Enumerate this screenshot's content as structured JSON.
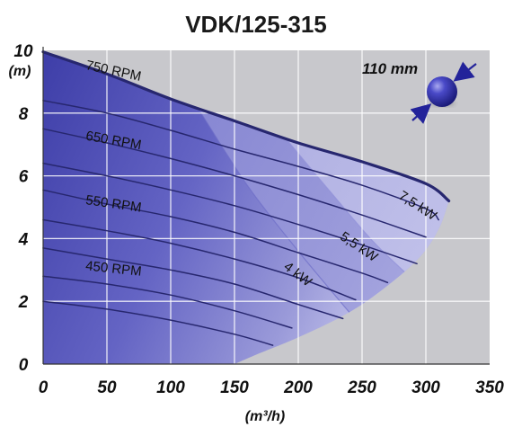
{
  "chart_data": {
    "type": "line",
    "title": "VDK/125-315",
    "xlabel": "(m³/h)",
    "ylabel": "(m)",
    "xlim": [
      0,
      350
    ],
    "ylim": [
      0,
      10
    ],
    "x_ticks": [
      "0",
      "50",
      "100",
      "150",
      "200",
      "250",
      "300",
      "350"
    ],
    "y_ticks": [
      "0",
      "2",
      "4",
      "6",
      "8",
      "10"
    ],
    "grid": true,
    "colors": {
      "region_dark": "#4b4bb0",
      "region_mid": "#7d7dd0",
      "region_light": "#b7b7e8",
      "curve": "#27276f",
      "grid": "#ffffff",
      "ball": "#3232a8",
      "arrow": "#23239a"
    },
    "envelope": {
      "name": "",
      "points": [
        [
          0,
          9.95
        ],
        [
          50,
          9.25
        ],
        [
          100,
          8.45
        ],
        [
          150,
          7.75
        ],
        [
          200,
          7.05
        ],
        [
          250,
          6.45
        ],
        [
          300,
          5.75
        ],
        [
          318,
          5.2
        ],
        [
          310,
          4.3
        ],
        [
          295,
          3.4
        ],
        [
          270,
          2.5
        ],
        [
          240,
          1.65
        ],
        [
          200,
          0.85
        ],
        [
          170,
          0.35
        ],
        [
          150,
          0
        ]
      ]
    },
    "series": [
      {
        "name": "750 RPM",
        "label_at": [
          33,
          9.4
        ],
        "label_angle": 12,
        "points": [
          [
            0,
            9.95
          ],
          [
            50,
            9.25
          ],
          [
            100,
            8.45
          ],
          [
            150,
            7.75
          ],
          [
            200,
            7.05
          ],
          [
            250,
            6.45
          ],
          [
            300,
            5.75
          ],
          [
            318,
            5.2
          ]
        ]
      },
      {
        "name": "",
        "points": [
          [
            0,
            8.4
          ],
          [
            50,
            8.0
          ],
          [
            100,
            7.45
          ],
          [
            150,
            6.85
          ],
          [
            200,
            6.3
          ],
          [
            250,
            5.7
          ],
          [
            300,
            4.95
          ],
          [
            310,
            4.6
          ]
        ]
      },
      {
        "name": "650 RPM",
        "label_at": [
          33,
          7.15
        ],
        "label_angle": 10,
        "points": [
          [
            0,
            7.5
          ],
          [
            50,
            7.05
          ],
          [
            100,
            6.55
          ],
          [
            150,
            6.0
          ],
          [
            200,
            5.4
          ],
          [
            250,
            4.75
          ],
          [
            300,
            4.05
          ]
        ]
      },
      {
        "name": "",
        "points": [
          [
            0,
            6.4
          ],
          [
            50,
            6.0
          ],
          [
            100,
            5.55
          ],
          [
            150,
            5.05
          ],
          [
            200,
            4.45
          ],
          [
            250,
            3.8
          ],
          [
            293,
            3.2
          ]
        ]
      },
      {
        "name": "550 RPM",
        "label_at": [
          33,
          5.1
        ],
        "label_angle": 8,
        "points": [
          [
            0,
            5.55
          ],
          [
            50,
            5.1
          ],
          [
            100,
            4.7
          ],
          [
            150,
            4.2
          ],
          [
            200,
            3.55
          ],
          [
            250,
            2.9
          ],
          [
            270,
            2.6
          ]
        ]
      },
      {
        "name": "",
        "points": [
          [
            0,
            4.6
          ],
          [
            50,
            4.25
          ],
          [
            100,
            3.85
          ],
          [
            150,
            3.35
          ],
          [
            200,
            2.75
          ],
          [
            245,
            2.05
          ]
        ]
      },
      {
        "name": "450 RPM",
        "label_at": [
          33,
          3.0
        ],
        "label_angle": 6,
        "points": [
          [
            0,
            3.7
          ],
          [
            50,
            3.35
          ],
          [
            100,
            3.0
          ],
          [
            150,
            2.55
          ],
          [
            200,
            1.9
          ],
          [
            235,
            1.45
          ]
        ]
      },
      {
        "name": "",
        "points": [
          [
            0,
            2.8
          ],
          [
            50,
            2.55
          ],
          [
            100,
            2.2
          ],
          [
            150,
            1.7
          ],
          [
            195,
            1.15
          ]
        ]
      },
      {
        "name": "",
        "points": [
          [
            0,
            2.0
          ],
          [
            50,
            1.75
          ],
          [
            100,
            1.4
          ],
          [
            150,
            0.95
          ],
          [
            180,
            0.6
          ]
        ]
      }
    ],
    "power_lines": [
      {
        "label": "4 kW",
        "label_at": [
          188,
          3.05
        ],
        "label_angle": 37,
        "points": [
          [
            120,
            8.25
          ],
          [
            160,
            5.7
          ],
          [
            200,
            3.6
          ],
          [
            240,
            1.65
          ]
        ]
      },
      {
        "label": "5,5 kW",
        "label_at": [
          232,
          4.0
        ],
        "label_angle": 34,
        "points": [
          [
            188,
            7.3
          ],
          [
            225,
            5.5
          ],
          [
            260,
            3.85
          ],
          [
            295,
            2.5
          ]
        ]
      },
      {
        "label": "7,5 kW",
        "label_at": [
          278,
          5.3
        ],
        "label_angle": 33,
        "points": [
          [
            300,
            5.75
          ],
          [
            318,
            5.2
          ]
        ]
      }
    ],
    "annotation": {
      "text": "110 mm",
      "at": [
        250,
        9.25
      ]
    }
  }
}
